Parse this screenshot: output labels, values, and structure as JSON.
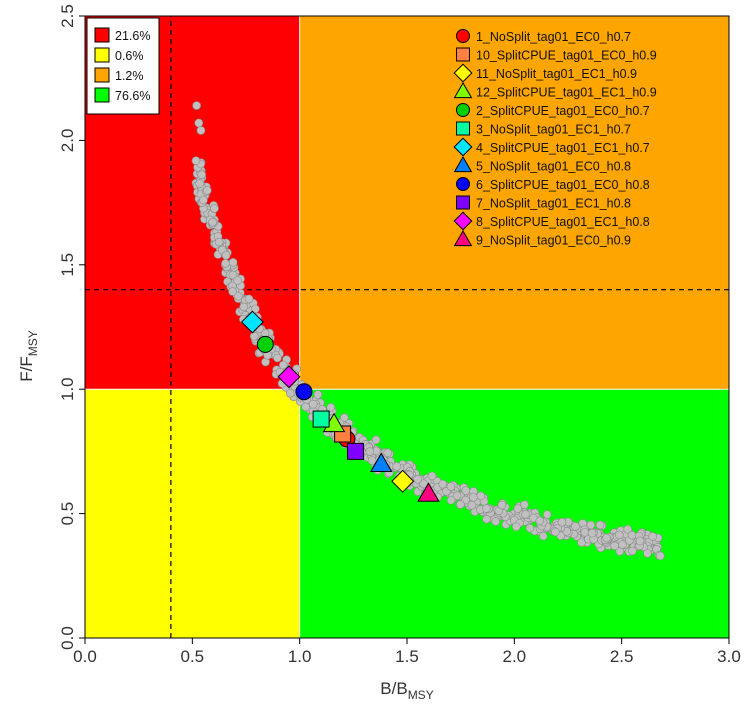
{
  "chart_data": {
    "type": "scatter",
    "title": "",
    "xlabel": {
      "main": "B/B",
      "sub": "MSY"
    },
    "ylabel": {
      "main": "F/F",
      "sub": "MSY"
    },
    "xlim": [
      0,
      3
    ],
    "ylim": [
      0,
      2.5
    ],
    "x_ticks": [
      "0.0",
      "0.5",
      "1.0",
      "1.5",
      "2.0",
      "2.5",
      "3.0"
    ],
    "y_ticks": [
      "0.0",
      "0.5",
      "1.0",
      "1.5",
      "2.0",
      "2.5"
    ],
    "quadrants": [
      {
        "name": "overfished-overfishing",
        "x": [
          0,
          1
        ],
        "y": [
          1,
          2.5
        ],
        "color": "#ff0000"
      },
      {
        "name": "healthy-overfishing",
        "x": [
          1,
          3
        ],
        "y": [
          1,
          2.5
        ],
        "color": "#ffa500"
      },
      {
        "name": "overfished-not-overfishing",
        "x": [
          0,
          1
        ],
        "y": [
          0,
          1
        ],
        "color": "#ffff00"
      },
      {
        "name": "healthy",
        "x": [
          1,
          3
        ],
        "y": [
          0,
          1
        ],
        "color": "#00ff00"
      }
    ],
    "reference_lines": {
      "vertical_x": 0.4,
      "horizontal_y": 1.4
    },
    "quadrant_legend": [
      {
        "label": "21.6%",
        "color": "#ff0000"
      },
      {
        "label": "0.6%",
        "color": "#ffff00"
      },
      {
        "label": "1.2%",
        "color": "#ffa500"
      },
      {
        "label": "76.6%",
        "color": "#00ff00"
      }
    ],
    "cloud": {
      "relation": "F/FMSY approximately 0.99 / (B/BMSY)",
      "x_range": [
        0.53,
        2.68
      ],
      "color": "#c0c0c0",
      "extreme_points": [
        [
          0.52,
          2.14
        ],
        [
          0.53,
          2.07
        ],
        [
          0.54,
          2.04
        ],
        [
          2.55,
          0.35
        ],
        [
          2.62,
          0.34
        ],
        [
          2.68,
          0.33
        ]
      ]
    },
    "series": [
      {
        "name": "1_NoSplit_tag01_EC0_h0.7",
        "shape": "circle",
        "color": "#ff0000",
        "x": 1.22,
        "y": 0.8
      },
      {
        "name": "10_SplitCPUE_tag01_EC0_h0.9",
        "shape": "square",
        "color": "#ff8040",
        "x": 1.2,
        "y": 0.82
      },
      {
        "name": "11_NoSplit_tag01_EC1_h0.9",
        "shape": "diamond",
        "color": "#ffff00",
        "x": 1.48,
        "y": 0.63
      },
      {
        "name": "12_SplitCPUE_tag01_EC1_h0.9",
        "shape": "triangle",
        "color": "#80ff00",
        "x": 1.16,
        "y": 0.86
      },
      {
        "name": "2_SplitCPUE_tag01_EC0_h0.7",
        "shape": "circle",
        "color": "#00d000",
        "x": 0.84,
        "y": 1.18
      },
      {
        "name": "3_NoSplit_tag01_EC1_h0.7",
        "shape": "square",
        "color": "#00ffa0",
        "x": 1.1,
        "y": 0.88
      },
      {
        "name": "4_SplitCPUE_tag01_EC1_h0.7",
        "shape": "diamond",
        "color": "#00e5ff",
        "x": 0.78,
        "y": 1.27
      },
      {
        "name": "5_NoSplit_tag01_EC0_h0.8",
        "shape": "triangle",
        "color": "#0080ff",
        "x": 1.38,
        "y": 0.7
      },
      {
        "name": "6_SplitCPUE_tag01_EC0_h0.8",
        "shape": "circle",
        "color": "#0000ff",
        "x": 1.02,
        "y": 0.99
      },
      {
        "name": "7_NoSplit_tag01_EC1_h0.8",
        "shape": "square",
        "color": "#8000ff",
        "x": 1.26,
        "y": 0.75
      },
      {
        "name": "8_SplitCPUE_tag01_EC1_h0.8",
        "shape": "diamond",
        "color": "#ff00ff",
        "x": 0.95,
        "y": 1.05
      },
      {
        "name": "9_NoSplit_tag01_EC0_h0.9",
        "shape": "triangle",
        "color": "#ff0080",
        "x": 1.6,
        "y": 0.58
      }
    ]
  }
}
